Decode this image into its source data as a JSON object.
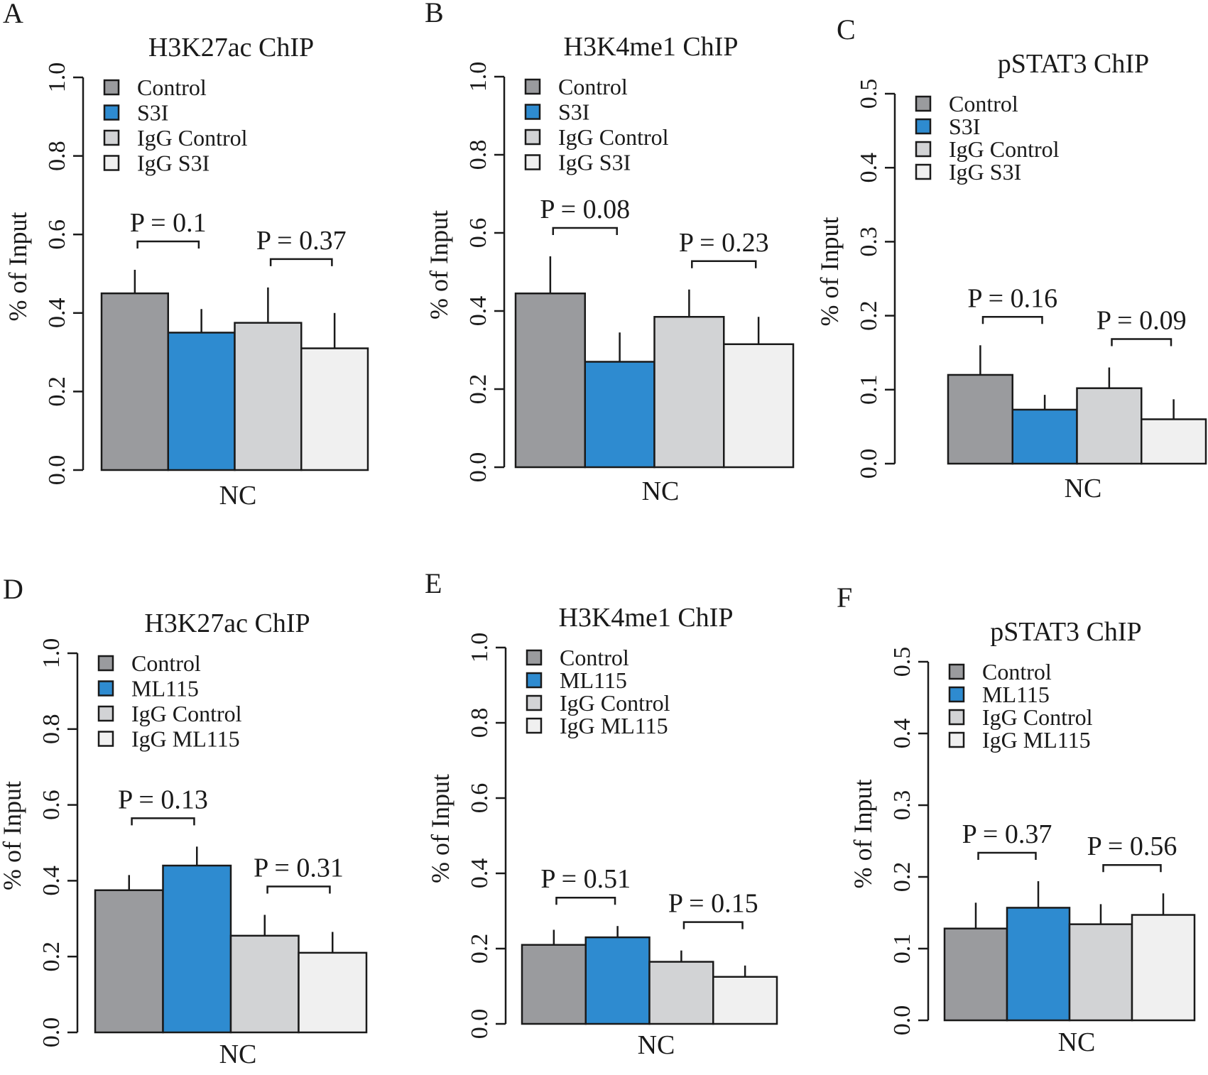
{
  "colors": {
    "Control": "#9a9b9e",
    "Treatment": "#2e8bd0",
    "IgG Control": "#d2d3d5",
    "IgG Treatment": "#f0f0f0",
    "axis": "#1a1a1a"
  },
  "chart_data": [
    {
      "panel": "A",
      "type": "bar",
      "title": "H3K27ac ChIP",
      "ylabel": "% of Input",
      "xlabel": "NC",
      "ylim": [
        0,
        1.0
      ],
      "yticks": [
        "0.0",
        "0.2",
        "0.4",
        "0.6",
        "0.8",
        "1.0"
      ],
      "legend_position": "top-left",
      "series": [
        {
          "name": "Control",
          "value": 0.45,
          "error": 0.06
        },
        {
          "name": "S3I",
          "value": 0.35,
          "error": 0.06
        },
        {
          "name": "IgG Control",
          "value": 0.375,
          "error": 0.09
        },
        {
          "name": "IgG S3I",
          "value": 0.31,
          "error": 0.09
        }
      ],
      "pvalues": [
        {
          "text": "P = 0.1",
          "pair": [
            0,
            1
          ]
        },
        {
          "text": "P = 0.37",
          "pair": [
            2,
            3
          ]
        }
      ]
    },
    {
      "panel": "B",
      "type": "bar",
      "title": "H3K4me1 ChIP",
      "ylabel": "% of Input",
      "xlabel": "NC",
      "ylim": [
        0,
        1.0
      ],
      "yticks": [
        "0.0",
        "0.2",
        "0.4",
        "0.6",
        "0.8",
        "1.0"
      ],
      "legend_position": "top-left",
      "series": [
        {
          "name": "Control",
          "value": 0.445,
          "error": 0.095
        },
        {
          "name": "S3I",
          "value": 0.27,
          "error": 0.075
        },
        {
          "name": "IgG Control",
          "value": 0.385,
          "error": 0.07
        },
        {
          "name": "IgG S3I",
          "value": 0.315,
          "error": 0.07
        }
      ],
      "pvalues": [
        {
          "text": "P = 0.08",
          "pair": [
            0,
            1
          ]
        },
        {
          "text": "P = 0.23",
          "pair": [
            2,
            3
          ]
        }
      ]
    },
    {
      "panel": "C",
      "type": "bar",
      "title": "pSTAT3 ChIP",
      "ylabel": "% of Input",
      "xlabel": "NC",
      "ylim": [
        0,
        0.5
      ],
      "yticks": [
        "0.0",
        "0.1",
        "0.2",
        "0.3",
        "0.4",
        "0.5"
      ],
      "legend_position": "top-left",
      "series": [
        {
          "name": "Control",
          "value": 0.12,
          "error": 0.04
        },
        {
          "name": "S3I",
          "value": 0.073,
          "error": 0.02
        },
        {
          "name": "IgG Control",
          "value": 0.102,
          "error": 0.028
        },
        {
          "name": "IgG S3I",
          "value": 0.06,
          "error": 0.027
        }
      ],
      "pvalues": [
        {
          "text": "P = 0.16",
          "pair": [
            0,
            1
          ]
        },
        {
          "text": "P = 0.09",
          "pair": [
            2,
            3
          ]
        }
      ]
    },
    {
      "panel": "D",
      "type": "bar",
      "title": "H3K27ac ChIP",
      "ylabel": "% of Input",
      "xlabel": "NC",
      "ylim": [
        0,
        1.0
      ],
      "yticks": [
        "0.0",
        "0.2",
        "0.4",
        "0.6",
        "0.8",
        "1.0"
      ],
      "legend_position": "top-left",
      "series": [
        {
          "name": "Control",
          "value": 0.375,
          "error": 0.04
        },
        {
          "name": "ML115",
          "value": 0.44,
          "error": 0.05
        },
        {
          "name": "IgG Control",
          "value": 0.255,
          "error": 0.055
        },
        {
          "name": "IgG ML115",
          "value": 0.21,
          "error": 0.055
        }
      ],
      "pvalues": [
        {
          "text": "P = 0.13",
          "pair": [
            0,
            1
          ]
        },
        {
          "text": "P = 0.31",
          "pair": [
            2,
            3
          ]
        }
      ]
    },
    {
      "panel": "E",
      "type": "bar",
      "title": "H3K4me1 ChIP",
      "ylabel": "% of Input",
      "xlabel": "NC",
      "ylim": [
        0,
        1.0
      ],
      "yticks": [
        "0.0",
        "0.2",
        "0.4",
        "0.6",
        "0.8",
        "1.0"
      ],
      "legend_position": "top-left",
      "series": [
        {
          "name": "Control",
          "value": 0.21,
          "error": 0.04
        },
        {
          "name": "ML115",
          "value": 0.23,
          "error": 0.03
        },
        {
          "name": "IgG Control",
          "value": 0.165,
          "error": 0.03
        },
        {
          "name": "IgG ML115",
          "value": 0.125,
          "error": 0.03
        }
      ],
      "pvalues": [
        {
          "text": "P = 0.51",
          "pair": [
            0,
            1
          ]
        },
        {
          "text": "P = 0.15",
          "pair": [
            2,
            3
          ]
        }
      ]
    },
    {
      "panel": "F",
      "type": "bar",
      "title": "pSTAT3 ChIP",
      "ylabel": "% of Input",
      "xlabel": "NC",
      "ylim": [
        0,
        0.5
      ],
      "yticks": [
        "0.0",
        "0.1",
        "0.2",
        "0.3",
        "0.4",
        "0.5"
      ],
      "legend_position": "top-left",
      "series": [
        {
          "name": "Control",
          "value": 0.128,
          "error": 0.036
        },
        {
          "name": "ML115",
          "value": 0.157,
          "error": 0.037
        },
        {
          "name": "IgG Control",
          "value": 0.134,
          "error": 0.028
        },
        {
          "name": "IgG ML115",
          "value": 0.147,
          "error": 0.03
        }
      ],
      "pvalues": [
        {
          "text": "P = 0.37",
          "pair": [
            0,
            1
          ]
        },
        {
          "text": "P = 0.56",
          "pair": [
            2,
            3
          ]
        }
      ]
    }
  ]
}
